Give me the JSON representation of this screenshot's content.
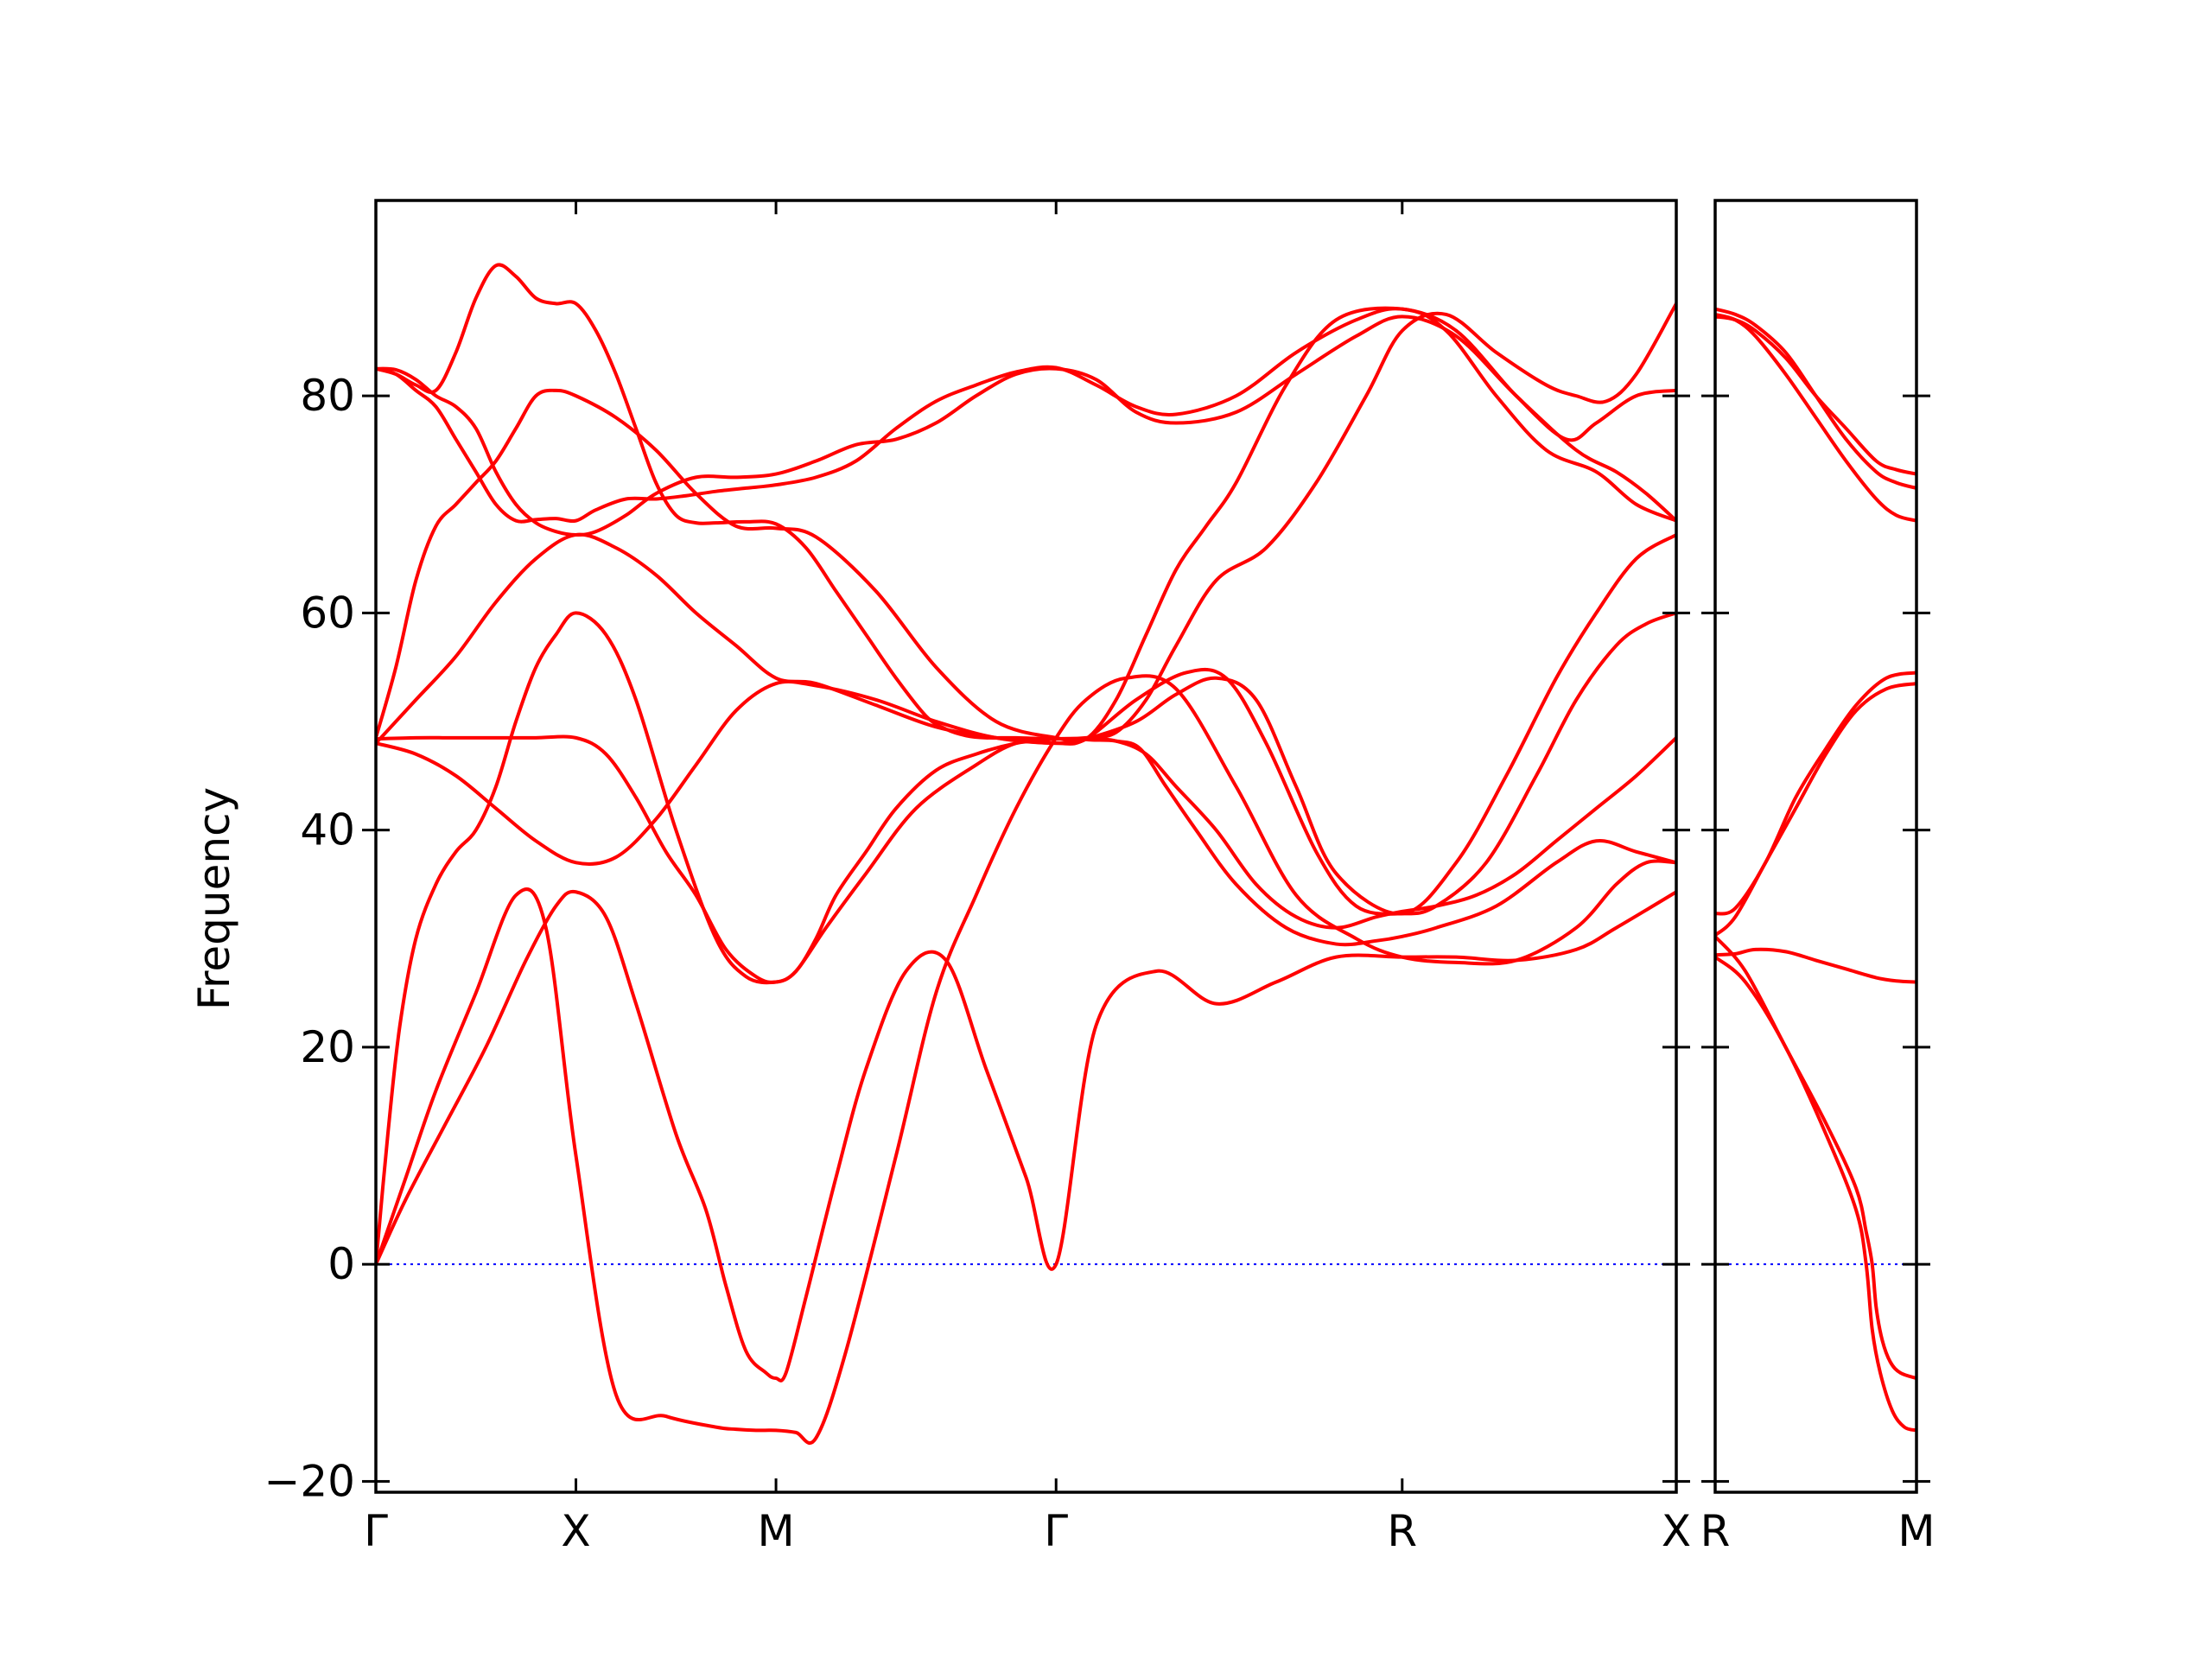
{
  "chart_data": {
    "type": "line",
    "ylabel": "Frequency",
    "ylim": [
      -21,
      98
    ],
    "yticks": [
      -20,
      0,
      20,
      40,
      60,
      80
    ],
    "ytick_labels": [
      "−20",
      "0",
      "20",
      "40",
      "60",
      "80"
    ],
    "band_color": "#ff0000",
    "zero_line_color": "#0000ff",
    "grid": false,
    "panels": [
      {
        "xlim": [
          0,
          6.5
        ],
        "high_symmetry_points": [
          {
            "x": 0,
            "label": "Γ"
          },
          {
            "x": 1,
            "label": "X"
          },
          {
            "x": 2,
            "label": "M"
          },
          {
            "x": 3.4,
            "label": "Γ"
          },
          {
            "x": 5.13,
            "label": "R"
          },
          {
            "x": 6.5,
            "label": "X"
          }
        ],
        "series": [
          {
            "x": [
              0,
              0.15,
              0.3,
              0.5,
              0.7,
              0.85,
              1.0,
              1.2,
              1.45,
              1.7,
              1.8,
              1.9,
              2.0,
              2.1,
              2.2,
              2.35,
              2.6,
              2.8,
              3.0,
              3.2,
              3.4,
              3.55,
              3.75,
              4.0,
              4.3,
              4.6,
              4.9,
              5.13,
              5.4,
              5.7,
              6.0,
              6.2,
              6.35,
              6.5
            ],
            "y": [
              0,
              8,
              16,
              25,
              34,
              31,
              10,
              -12,
              -14,
              -15,
              -15.2,
              -15.3,
              -15.3,
              -15.5,
              -16,
              -8,
              10,
              25,
              34,
              42,
              48.5,
              52,
              54,
              53,
              44,
              34,
              30,
              28.3,
              27.8,
              28,
              31,
              35,
              37,
              37
            ]
          },
          {
            "x": [
              0,
              0.15,
              0.35,
              0.55,
              0.75,
              0.9,
              1.0,
              1.15,
              1.3,
              1.5,
              1.65,
              1.75,
              1.85,
              1.95,
              2.0,
              2.05,
              2.15,
              2.3,
              2.45,
              2.65,
              2.85,
              3.05,
              3.25,
              3.4,
              3.6,
              3.9,
              4.2,
              4.5,
              4.8,
              5.13,
              5.4,
              5.7,
              6.0,
              6.2,
              6.5
            ],
            "y": [
              0,
              6,
              13,
              20,
              28,
              33,
              34.3,
              32,
              24,
              12,
              5,
              -2,
              -8,
              -10,
              -10.5,
              -10,
              -3,
              8,
              18,
              27,
              28,
              18,
              8,
              0,
              22,
              27,
              24,
              26,
              28.3,
              28.3,
              28.3,
              28,
              29,
              31,
              34.3
            ]
          },
          {
            "x": [
              0,
              0.06,
              0.12,
              0.2,
              0.3,
              0.4,
              0.5,
              0.6,
              0.7,
              0.8,
              0.9,
              1.0,
              1.15,
              1.3,
              1.5,
              1.7,
              1.85,
              2.0,
              2.1,
              2.2,
              2.3,
              2.45,
              2.6,
              2.8,
              3.0,
              3.2,
              3.35,
              3.4,
              3.48,
              3.58,
              3.7,
              3.82,
              3.95,
              4.1,
              4.3,
              4.55,
              4.8,
              5.0,
              5.13,
              5.3,
              5.6,
              5.9,
              6.1,
              6.3,
              6.5
            ],
            "y": [
              0,
              12,
              22,
              30,
              35,
              38,
              40,
              44,
              50,
              55,
              58,
              60,
              58,
              52,
              40,
              30,
              26.5,
              26,
              27,
              30,
              34,
              38,
              42,
              45.5,
              47,
              48,
              48.3,
              48.4,
              48.4,
              48.3,
              48.2,
              47.5,
              44,
              40,
              35,
              31,
              29.5,
              29.8,
              30.2,
              31,
              33,
              37,
              39,
              38,
              37
            ]
          },
          {
            "x": [
              0,
              0.2,
              0.4,
              0.6,
              0.8,
              1.0,
              1.15,
              1.3,
              1.45,
              1.6,
              1.75,
              1.9,
              2.0,
              2.1,
              2.25,
              2.45,
              2.7,
              3.0,
              3.2,
              3.4,
              3.55,
              3.7,
              3.85,
              4.0,
              4.2,
              4.4,
              4.6,
              4.8,
              5.0,
              5.13,
              5.3,
              5.5,
              5.7,
              5.9,
              6.1,
              6.3,
              6.5
            ],
            "y": [
              48.4,
              48.5,
              48.5,
              48.5,
              48.5,
              48.5,
              47,
              43,
              38,
              34,
              29,
              26.5,
              26,
              27,
              31,
              36,
              42,
              46,
              48,
              48.4,
              48.4,
              48.2,
              47,
              44,
              40,
              35,
              32,
              31,
              32,
              32.5,
              33,
              34,
              36,
              39,
              42,
              45,
              48.5
            ]
          },
          {
            "x": [
              0,
              0.2,
              0.4,
              0.6,
              0.8,
              1.0,
              1.2,
              1.4,
              1.6,
              1.8,
              2.0,
              2.2,
              2.5,
              2.8,
              3.1,
              3.4,
              3.55,
              3.8,
              4.05,
              4.25,
              4.45,
              4.7,
              4.9,
              5.13,
              5.3,
              5.55,
              5.8,
              6.0,
              6.2,
              6.35,
              6.5
            ],
            "y": [
              48,
              47,
              45,
              42,
              39,
              37,
              37.5,
              41,
              46,
              51,
              53.5,
              53.3,
              52,
              50,
              48.5,
              48,
              48.4,
              52,
              54.5,
              54,
              48,
              38,
              33,
              32.3,
              33,
              37,
              45,
              52,
              57,
              59,
              60
            ]
          },
          {
            "x": [
              0,
              0.2,
              0.4,
              0.6,
              0.8,
              1.0,
              1.2,
              1.4,
              1.6,
              1.8,
              2.0,
              2.2,
              2.5,
              2.8,
              3.1,
              3.4,
              3.55,
              3.8,
              4.0,
              4.2,
              4.4,
              4.6,
              4.8,
              5.13,
              5.4,
              5.65,
              5.9,
              6.1,
              6.3,
              6.5
            ],
            "y": [
              48,
              52,
              56,
              61,
              65,
              67.2,
              66,
              63.5,
              60,
              57,
              54,
              53.5,
              51.5,
              49.5,
              48.5,
              48,
              48.4,
              50,
              52.5,
              54,
              52,
              44,
              36,
              32.3,
              37,
              45,
              54,
              60,
              65,
              67.2
            ]
          },
          {
            "x": [
              0,
              0.1,
              0.2,
              0.3,
              0.4,
              0.5,
              0.6,
              0.7,
              0.8,
              0.9,
              1.0,
              1.2,
              1.4,
              1.6,
              1.8,
              2.0,
              2.2,
              2.5,
              2.8,
              3.1,
              3.4,
              3.55,
              3.7,
              3.85,
              4.0,
              4.15,
              4.3,
              4.55,
              4.8,
              5.13,
              5.35,
              5.6,
              5.85,
              6.1,
              6.3,
              6.5
            ],
            "y": [
              48.5,
              55,
              63,
              68,
              70,
              72,
              74,
              77,
              80,
              80.5,
              80,
              78,
              75,
              71,
              68,
              67.8,
              67,
              62,
              55,
              50,
              48.5,
              48.4,
              52,
              58,
              64,
              68,
              72,
              81,
              87,
              88,
              86,
              80,
              75,
              73,
              70,
              68.5
            ]
          },
          {
            "x": [
              0,
              0.1,
              0.2,
              0.3,
              0.4,
              0.5,
              0.6,
              0.7,
              0.8,
              0.9,
              1.0,
              1.1,
              1.25,
              1.4,
              1.55,
              1.7,
              1.85,
              2.0,
              2.2,
              2.4,
              2.6,
              2.8,
              3.0,
              3.2,
              3.4,
              3.6,
              3.8,
              4.0,
              4.3,
              4.6,
              4.9,
              5.13,
              5.4,
              5.7,
              5.95,
              6.1,
              6.3,
              6.5
            ],
            "y": [
              82.5,
              82,
              80.5,
              79,
              76,
              73,
              70,
              68.5,
              68.6,
              68.7,
              68.5,
              69.5,
              70.5,
              70.5,
              70.8,
              71.2,
              71.5,
              71.8,
              72.5,
              74,
              77,
              79.5,
              81,
              82.2,
              82.6,
              81,
              79,
              78.3,
              80,
              84,
              87,
              88,
              86,
              80,
              76,
              77.5,
              80,
              80.5
            ]
          },
          {
            "x": [
              0,
              0.1,
              0.2,
              0.3,
              0.4,
              0.5,
              0.6,
              0.7,
              0.8,
              0.9,
              1.0,
              1.1,
              1.25,
              1.4,
              1.6,
              1.8,
              2.0,
              2.2,
              2.4,
              2.6,
              2.8,
              3.0,
              3.2,
              3.4,
              3.6,
              3.8,
              4.0,
              4.3,
              4.6,
              4.9,
              5.13,
              5.4,
              5.7,
              6.0,
              6.2,
              6.35,
              6.5
            ],
            "y": [
              82.5,
              82.4,
              81.5,
              80,
              79,
              77,
              73,
              70,
              68.3,
              67.5,
              67.2,
              67.5,
              69,
              71,
              72.5,
              72.5,
              72.8,
              74,
              75.5,
              76,
              77.5,
              80,
              82,
              82.5,
              81.5,
              78.5,
              77.5,
              78.5,
              82,
              85.5,
              87.3,
              85.5,
              80,
              75,
              73,
              71,
              68.5
            ]
          },
          {
            "x": [
              0,
              0.1,
              0.2,
              0.3,
              0.4,
              0.5,
              0.6,
              0.7,
              0.8,
              0.9,
              1.0,
              1.1,
              1.2,
              1.3,
              1.4,
              1.5,
              1.6,
              1.7,
              1.85,
              2.0,
              2.15,
              2.3,
              2.45,
              2.6,
              2.75,
              2.85,
              2.95,
              3.05,
              3.2,
              3.4,
              3.55,
              3.7,
              3.85,
              4.0,
              4.2,
              4.45,
              4.7,
              4.95,
              5.13,
              5.35,
              5.6,
              5.85,
              6.0,
              6.15,
              6.3,
              6.5
            ],
            "y": [
              82.5,
              82,
              81,
              80.5,
              84,
              89,
              92,
              91,
              89,
              88.5,
              88.5,
              86,
              82,
              77,
              72,
              69,
              68.3,
              68.3,
              68.4,
              68.2,
              66,
              62,
              58,
              54,
              50.5,
              49.3,
              48.7,
              48.5,
              48.5,
              48.4,
              48.5,
              49,
              52,
              57,
              63,
              66,
              72,
              80,
              86,
              87.5,
              84,
              81,
              80,
              79.5,
              82,
              88.5
            ]
          }
        ]
      },
      {
        "xlim": [
          0,
          1.0
        ],
        "high_symmetry_points": [
          {
            "x": 0,
            "label": "R"
          },
          {
            "x": 1.0,
            "label": "M"
          }
        ],
        "series": [
          {
            "x": [
              0,
              0.15,
              0.35,
              0.55,
              0.7,
              0.75,
              0.78,
              0.82,
              0.88,
              0.94,
              1.0
            ],
            "y": [
              28.3,
              26,
              20,
              12,
              5,
              0,
              -6,
              -10,
              -13.5,
              -15,
              -15.3
            ]
          },
          {
            "x": [
              0,
              0.15,
              0.35,
              0.55,
              0.7,
              0.75,
              0.78,
              0.8,
              0.83,
              0.87,
              0.92,
              1.0
            ],
            "y": [
              30.2,
              27,
              20,
              13,
              7,
              3,
              0,
              -4,
              -7,
              -9,
              -10,
              -10.5
            ]
          },
          {
            "x": [
              0,
              0.1,
              0.2,
              0.35,
              0.5,
              0.65,
              0.8,
              0.9,
              1.0
            ],
            "y": [
              28.5,
              28.6,
              29,
              28.8,
              28,
              27.2,
              26.4,
              26.1,
              26
            ]
          },
          {
            "x": [
              0,
              0.1,
              0.25,
              0.4,
              0.55,
              0.7,
              0.85,
              1.0
            ],
            "y": [
              30.3,
              32,
              37,
              42,
              47,
              51,
              53,
              53.5
            ]
          },
          {
            "x": [
              0,
              0.1,
              0.25,
              0.4,
              0.55,
              0.7,
              0.85,
              1.0
            ],
            "y": [
              32.3,
              32.8,
              37,
              43,
              47.5,
              51.5,
              54,
              54.5
            ]
          },
          {
            "x": [
              0,
              0.1,
              0.2,
              0.35,
              0.5,
              0.65,
              0.8,
              0.9,
              1.0
            ],
            "y": [
              88,
              87.5,
              86.5,
              84,
              80,
              76,
              73,
              72,
              71.5
            ]
          },
          {
            "x": [
              0,
              0.1,
              0.2,
              0.35,
              0.5,
              0.65,
              0.8,
              0.9,
              1.0
            ],
            "y": [
              87.3,
              87,
              86,
              83.5,
              80,
              77,
              74,
              73.2,
              72.8
            ]
          },
          {
            "x": [
              0,
              0.1,
              0.2,
              0.35,
              0.5,
              0.65,
              0.8,
              0.9,
              1.0
            ],
            "y": [
              87.5,
              87,
              85.5,
              82,
              78,
              74,
              70.5,
              69,
              68.5
            ]
          }
        ]
      }
    ]
  }
}
